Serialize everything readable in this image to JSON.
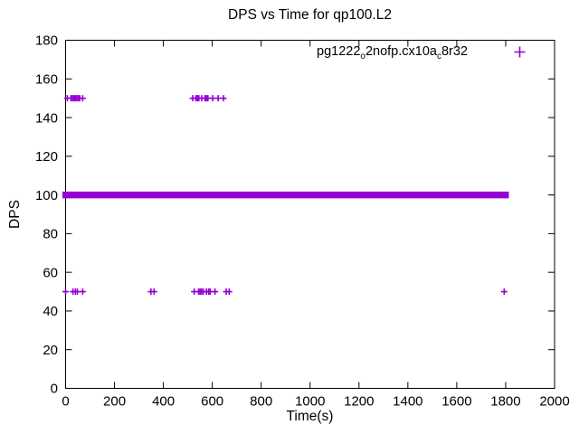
{
  "chart_data": {
    "type": "scatter",
    "title": "DPS vs Time for qp100.L2",
    "xlabel": "Time(s)",
    "ylabel": "DPS",
    "xlim": [
      0,
      2000
    ],
    "ylim": [
      0,
      180
    ],
    "xticks": [
      0,
      200,
      400,
      600,
      800,
      1000,
      1200,
      1400,
      1600,
      1800,
      2000
    ],
    "yticks": [
      0,
      20,
      40,
      60,
      80,
      100,
      120,
      140,
      160,
      180
    ],
    "grid": false,
    "marker": {
      "symbol": "plus",
      "color": "#9400D3"
    },
    "legend": {
      "position": "top-right-inside",
      "series_label": "pg1222_o2nofp.cx10a_c8r32",
      "label_segments": [
        {
          "text": "pg1222"
        },
        {
          "text": "o",
          "subscript": true
        },
        {
          "text": "2nofp.cx10a"
        },
        {
          "text": "c",
          "subscript": true
        },
        {
          "text": "8r32"
        }
      ]
    },
    "series": [
      {
        "name": "pg1222_o2nofp.cx10a_c8r32",
        "band": {
          "dps": 100,
          "t_start": 0,
          "t_end": 1800,
          "dps_spread": 3.5,
          "note": "dense overlapping plus markers forming a solid horizontal bar at ~100 DPS"
        },
        "points": [
          [
            7,
            150
          ],
          [
            22,
            150
          ],
          [
            28,
            150
          ],
          [
            34,
            150
          ],
          [
            40,
            150
          ],
          [
            46,
            150
          ],
          [
            52,
            150
          ],
          [
            58,
            150
          ],
          [
            70,
            150
          ],
          [
            520,
            150
          ],
          [
            533,
            150
          ],
          [
            539,
            150
          ],
          [
            545,
            150
          ],
          [
            557,
            150
          ],
          [
            570,
            150
          ],
          [
            576,
            150
          ],
          [
            582,
            150
          ],
          [
            602,
            150
          ],
          [
            624,
            150
          ],
          [
            646,
            150
          ],
          [
            0,
            50
          ],
          [
            30,
            50
          ],
          [
            40,
            50
          ],
          [
            48,
            50
          ],
          [
            70,
            50
          ],
          [
            349,
            50
          ],
          [
            362,
            50
          ],
          [
            526,
            50
          ],
          [
            544,
            50
          ],
          [
            550,
            50
          ],
          [
            556,
            50
          ],
          [
            563,
            50
          ],
          [
            576,
            50
          ],
          [
            585,
            50
          ],
          [
            591,
            50
          ],
          [
            611,
            50
          ],
          [
            657,
            50
          ],
          [
            669,
            50
          ],
          [
            1794,
            50
          ]
        ]
      }
    ]
  }
}
